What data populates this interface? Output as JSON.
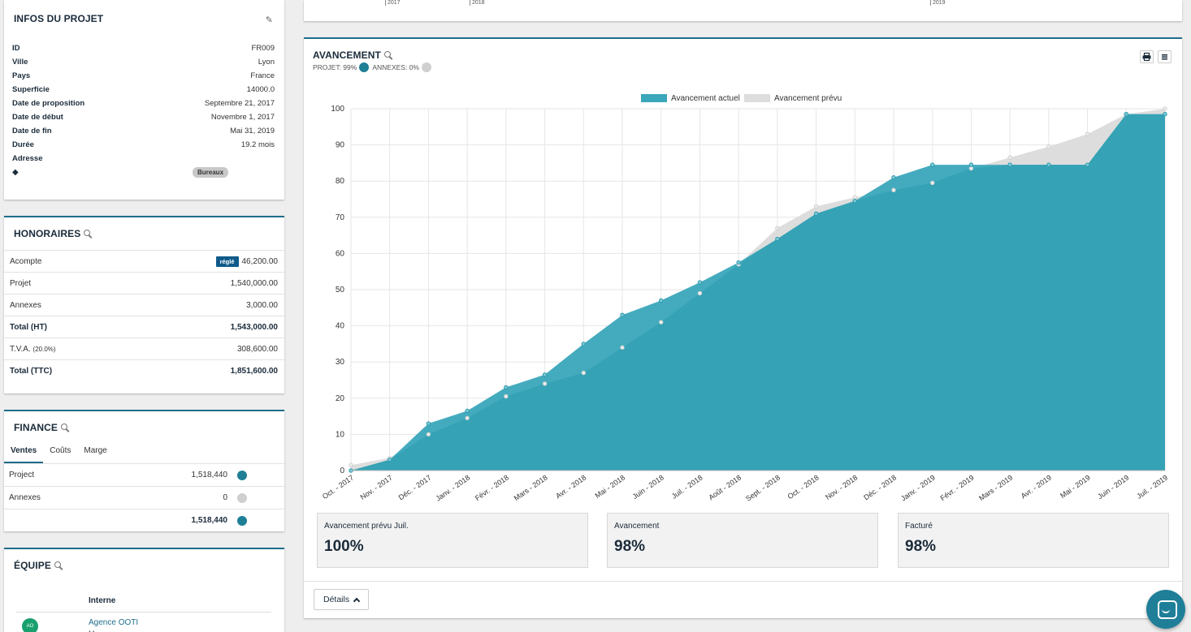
{
  "infos": {
    "title": "INFOS DU PROJET",
    "rows": [
      {
        "k": "ID",
        "v": "FR009"
      },
      {
        "k": "Ville",
        "v": "Lyon"
      },
      {
        "k": "Pays",
        "v": "France"
      },
      {
        "k": "Superficie",
        "v": "14000.0"
      },
      {
        "k": "Date de proposition",
        "v": "Septembre 21, 2017"
      },
      {
        "k": "Date de début",
        "v": "Novembre 1, 2017"
      },
      {
        "k": "Date de fin",
        "v": "Mai 31, 2019"
      },
      {
        "k": "Durée",
        "v": "19.2 mois"
      },
      {
        "k": "Adresse",
        "v": ""
      }
    ],
    "tag": "Bureaux",
    "tag_icon": "tag-icon",
    "edit_icon": "pencil-icon"
  },
  "honoraires": {
    "title": "HONORAIRES",
    "paid_badge": "réglé",
    "rows": [
      {
        "k": "Acompte",
        "v": "46,200.00"
      },
      {
        "k": "Projet",
        "v": "1,540,000.00"
      },
      {
        "k": "Annexes",
        "v": "3,000.00"
      },
      {
        "k": "Total (HT)",
        "v": "1,543,000.00"
      },
      {
        "k": "T.V.A.",
        "sub": "(20.0%)",
        "v": "308,600.00"
      },
      {
        "k": "Total (TTC)",
        "v": "1,851,600.00"
      }
    ]
  },
  "finance": {
    "title": "FINANCE",
    "tabs": [
      "Ventes",
      "Coûts",
      "Marge"
    ],
    "rows": [
      {
        "k": "Project",
        "v": "1,518,440"
      },
      {
        "k": "Annexes",
        "v": "0"
      },
      {
        "k": "",
        "v": "1,518,440"
      }
    ]
  },
  "equipe": {
    "title": "ÉQUIPE",
    "header": "Interne",
    "member": "Agence OOTI",
    "role": "Ma...",
    "avatar": "AO"
  },
  "top_strip": {
    "ticks": [
      "2017",
      "2018",
      "2019"
    ]
  },
  "avancement": {
    "title": "AVANCEMENT",
    "projet_label": "PROJET: 99%",
    "annexes_label": "ANNEXES: 0%",
    "kpis": [
      {
        "label": "Avancement prévu Juil.",
        "value": "100%"
      },
      {
        "label": "Avancement",
        "value": "98%"
      },
      {
        "label": "Facturé",
        "value": "98%"
      }
    ],
    "details_label": "Détails"
  },
  "colors": {
    "accent": "#1f6e8c",
    "teal": "#3aa7ba",
    "grey": "#dddddd"
  },
  "chart_data": {
    "type": "area",
    "categories": [
      "Oct. - 2017",
      "Nov. - 2017",
      "Déc. - 2017",
      "Janv. - 2018",
      "Févr. - 2018",
      "Mars - 2018",
      "Avr. - 2018",
      "Mai - 2018",
      "Juin - 2018",
      "Juil. - 2018",
      "Août - 2018",
      "Sept. - 2018",
      "Oct. - 2018",
      "Nov. - 2018",
      "Déc. - 2018",
      "Janv. - 2019",
      "Févr. - 2019",
      "Mars - 2019",
      "Avr. - 2019",
      "Mai - 2019",
      "Juin - 2019",
      "Juil. - 2019"
    ],
    "series": [
      {
        "name": "Avancement actuel",
        "color": "#3aa7ba",
        "values": [
          0,
          3,
          13,
          16.5,
          23,
          26.5,
          35,
          43,
          47,
          52,
          57.5,
          64,
          71,
          74.5,
          81,
          84.5,
          84.5,
          84.5,
          84.5,
          84.5,
          98.5,
          98.5
        ]
      },
      {
        "name": "Avancement prévu",
        "color": "#dddddd",
        "values": [
          1.5,
          3.5,
          10,
          14.5,
          20.5,
          24,
          27,
          34,
          41,
          49,
          57,
          67,
          73,
          75.5,
          77.5,
          79.5,
          83.5,
          86.5,
          89.5,
          93,
          98.5,
          100
        ]
      }
    ],
    "ylim": [
      0,
      100
    ],
    "yticks": [
      0,
      10,
      20,
      30,
      40,
      50,
      60,
      70,
      80,
      90,
      100
    ],
    "grid": true,
    "legend": "top-center"
  }
}
